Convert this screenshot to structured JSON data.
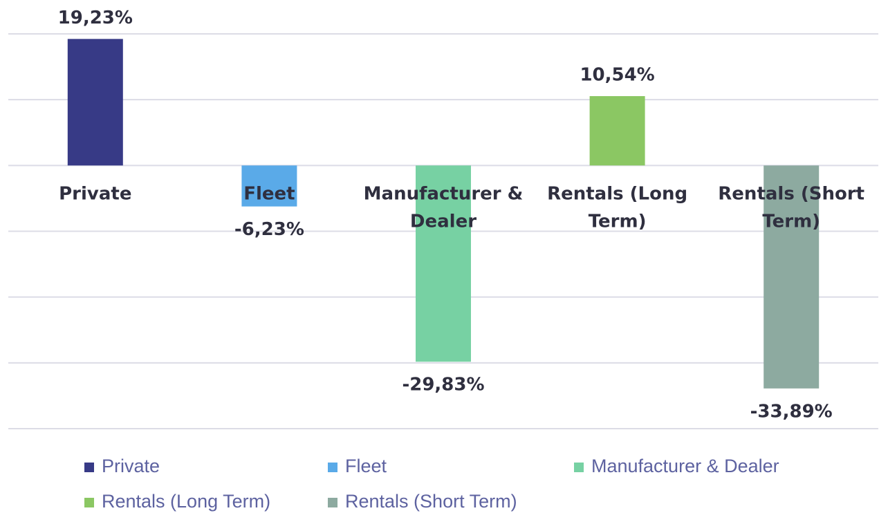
{
  "chart_data": {
    "type": "bar",
    "categories": [
      "Private",
      "Fleet",
      "Manufacturer & Dealer",
      "Rentals (Long Term)",
      "Rentals (Short Term)"
    ],
    "values": [
      19.23,
      -6.23,
      -29.83,
      10.54,
      -33.89
    ],
    "value_labels": [
      "19,23%",
      "-6,23%",
      "-29,83%",
      "10,54%",
      "-33,89%"
    ],
    "colors": [
      "#373a86",
      "#5aaae8",
      "#77d1a3",
      "#8bc763",
      "#8daaa0"
    ],
    "ylim": [
      -40,
      20
    ],
    "yticks": [
      -40,
      -30,
      -20,
      -10,
      0,
      10,
      20
    ],
    "grid": true
  }
}
